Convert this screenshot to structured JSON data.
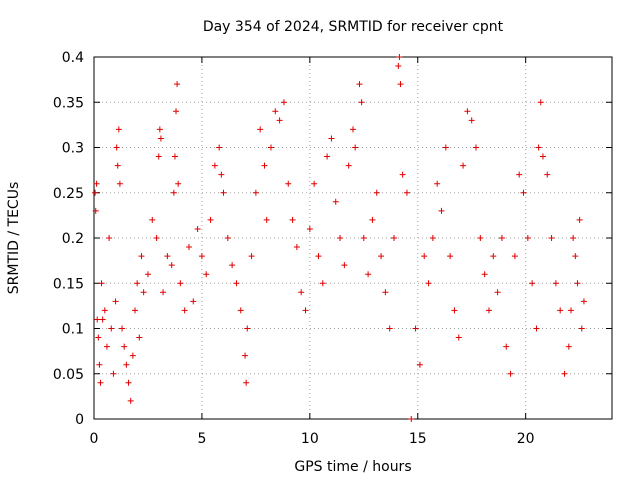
{
  "chart_data": {
    "type": "scatter",
    "title": "Day 354 of 2024, SRMTID for receiver cpnt",
    "xlabel": "GPS time / hours",
    "ylabel": "SRMTID / TECUs",
    "xlim": [
      0,
      24
    ],
    "ylim": [
      0,
      0.4
    ],
    "x_ticks": [
      0,
      5,
      10,
      15,
      20
    ],
    "x_tick_labels": [
      "0",
      "5",
      "10",
      "15",
      "20"
    ],
    "y_ticks": [
      0,
      0.05,
      0.1,
      0.15,
      0.2,
      0.25,
      0.3,
      0.35,
      0.4
    ],
    "y_tick_labels": [
      "0",
      "0.05",
      "0.1",
      "0.15",
      "0.2",
      "0.25",
      "0.3",
      "0.35",
      "0.4"
    ],
    "grid": true,
    "marker": "plus",
    "color": "#e00000",
    "series": [
      {
        "points": [
          [
            0.05,
            0.25
          ],
          [
            0.08,
            0.23
          ],
          [
            0.12,
            0.26
          ],
          [
            0.15,
            0.11
          ],
          [
            0.2,
            0.09
          ],
          [
            0.25,
            0.06
          ],
          [
            0.3,
            0.04
          ],
          [
            0.35,
            0.15
          ],
          [
            0.4,
            0.11
          ],
          [
            0.5,
            0.12
          ],
          [
            0.6,
            0.08
          ],
          [
            0.7,
            0.2
          ],
          [
            0.8,
            0.1
          ],
          [
            0.9,
            0.05
          ],
          [
            1.0,
            0.13
          ],
          [
            1.05,
            0.3
          ],
          [
            1.1,
            0.28
          ],
          [
            1.15,
            0.32
          ],
          [
            1.2,
            0.26
          ],
          [
            1.3,
            0.1
          ],
          [
            1.4,
            0.08
          ],
          [
            1.5,
            0.06
          ],
          [
            1.6,
            0.04
          ],
          [
            1.7,
            0.02
          ],
          [
            1.8,
            0.07
          ],
          [
            1.9,
            0.12
          ],
          [
            2.0,
            0.15
          ],
          [
            2.1,
            0.09
          ],
          [
            2.2,
            0.18
          ],
          [
            2.3,
            0.14
          ],
          [
            2.5,
            0.16
          ],
          [
            2.7,
            0.22
          ],
          [
            2.9,
            0.2
          ],
          [
            3.0,
            0.29
          ],
          [
            3.05,
            0.32
          ],
          [
            3.1,
            0.31
          ],
          [
            3.2,
            0.14
          ],
          [
            3.4,
            0.18
          ],
          [
            3.6,
            0.17
          ],
          [
            3.7,
            0.25
          ],
          [
            3.75,
            0.29
          ],
          [
            3.8,
            0.34
          ],
          [
            3.85,
            0.37
          ],
          [
            3.9,
            0.26
          ],
          [
            4.0,
            0.15
          ],
          [
            4.2,
            0.12
          ],
          [
            4.4,
            0.19
          ],
          [
            4.6,
            0.13
          ],
          [
            4.8,
            0.21
          ],
          [
            5.0,
            0.18
          ],
          [
            5.2,
            0.16
          ],
          [
            5.4,
            0.22
          ],
          [
            5.6,
            0.28
          ],
          [
            5.8,
            0.3
          ],
          [
            5.9,
            0.27
          ],
          [
            6.0,
            0.25
          ],
          [
            6.2,
            0.2
          ],
          [
            6.4,
            0.17
          ],
          [
            6.6,
            0.15
          ],
          [
            6.8,
            0.12
          ],
          [
            7.0,
            0.07
          ],
          [
            7.05,
            0.04
          ],
          [
            7.1,
            0.1
          ],
          [
            7.3,
            0.18
          ],
          [
            7.5,
            0.25
          ],
          [
            7.7,
            0.32
          ],
          [
            7.9,
            0.28
          ],
          [
            8.0,
            0.22
          ],
          [
            8.2,
            0.3
          ],
          [
            8.4,
            0.34
          ],
          [
            8.6,
            0.33
          ],
          [
            8.8,
            0.35
          ],
          [
            9.0,
            0.26
          ],
          [
            9.2,
            0.22
          ],
          [
            9.4,
            0.19
          ],
          [
            9.6,
            0.14
          ],
          [
            9.8,
            0.12
          ],
          [
            10.0,
            0.21
          ],
          [
            10.2,
            0.26
          ],
          [
            10.4,
            0.18
          ],
          [
            10.6,
            0.15
          ],
          [
            10.8,
            0.29
          ],
          [
            11.0,
            0.31
          ],
          [
            11.2,
            0.24
          ],
          [
            11.4,
            0.2
          ],
          [
            11.6,
            0.17
          ],
          [
            11.8,
            0.28
          ],
          [
            12.0,
            0.32
          ],
          [
            12.1,
            0.3
          ],
          [
            12.3,
            0.37
          ],
          [
            12.4,
            0.35
          ],
          [
            12.5,
            0.2
          ],
          [
            12.7,
            0.16
          ],
          [
            12.9,
            0.22
          ],
          [
            13.1,
            0.25
          ],
          [
            13.3,
            0.18
          ],
          [
            13.5,
            0.14
          ],
          [
            13.7,
            0.1
          ],
          [
            13.9,
            0.2
          ],
          [
            14.1,
            0.39
          ],
          [
            14.15,
            0.4
          ],
          [
            14.2,
            0.37
          ],
          [
            14.3,
            0.27
          ],
          [
            14.5,
            0.25
          ],
          [
            14.7,
            0.0
          ],
          [
            14.9,
            0.1
          ],
          [
            15.1,
            0.06
          ],
          [
            15.3,
            0.18
          ],
          [
            15.5,
            0.15
          ],
          [
            15.7,
            0.2
          ],
          [
            15.9,
            0.26
          ],
          [
            16.1,
            0.23
          ],
          [
            16.3,
            0.3
          ],
          [
            16.5,
            0.18
          ],
          [
            16.7,
            0.12
          ],
          [
            16.9,
            0.09
          ],
          [
            17.1,
            0.28
          ],
          [
            17.3,
            0.34
          ],
          [
            17.5,
            0.33
          ],
          [
            17.7,
            0.3
          ],
          [
            17.9,
            0.2
          ],
          [
            18.1,
            0.16
          ],
          [
            18.3,
            0.12
          ],
          [
            18.5,
            0.18
          ],
          [
            18.7,
            0.14
          ],
          [
            18.9,
            0.2
          ],
          [
            19.1,
            0.08
          ],
          [
            19.3,
            0.05
          ],
          [
            19.5,
            0.18
          ],
          [
            19.7,
            0.27
          ],
          [
            19.9,
            0.25
          ],
          [
            20.1,
            0.2
          ],
          [
            20.3,
            0.15
          ],
          [
            20.5,
            0.1
          ],
          [
            20.6,
            0.3
          ],
          [
            20.7,
            0.35
          ],
          [
            20.8,
            0.29
          ],
          [
            21.0,
            0.27
          ],
          [
            21.2,
            0.2
          ],
          [
            21.4,
            0.15
          ],
          [
            21.6,
            0.12
          ],
          [
            21.8,
            0.05
          ],
          [
            22.0,
            0.08
          ],
          [
            22.1,
            0.12
          ],
          [
            22.2,
            0.2
          ],
          [
            22.3,
            0.18
          ],
          [
            22.4,
            0.15
          ],
          [
            22.5,
            0.22
          ],
          [
            22.6,
            0.1
          ],
          [
            22.7,
            0.13
          ]
        ]
      }
    ]
  }
}
